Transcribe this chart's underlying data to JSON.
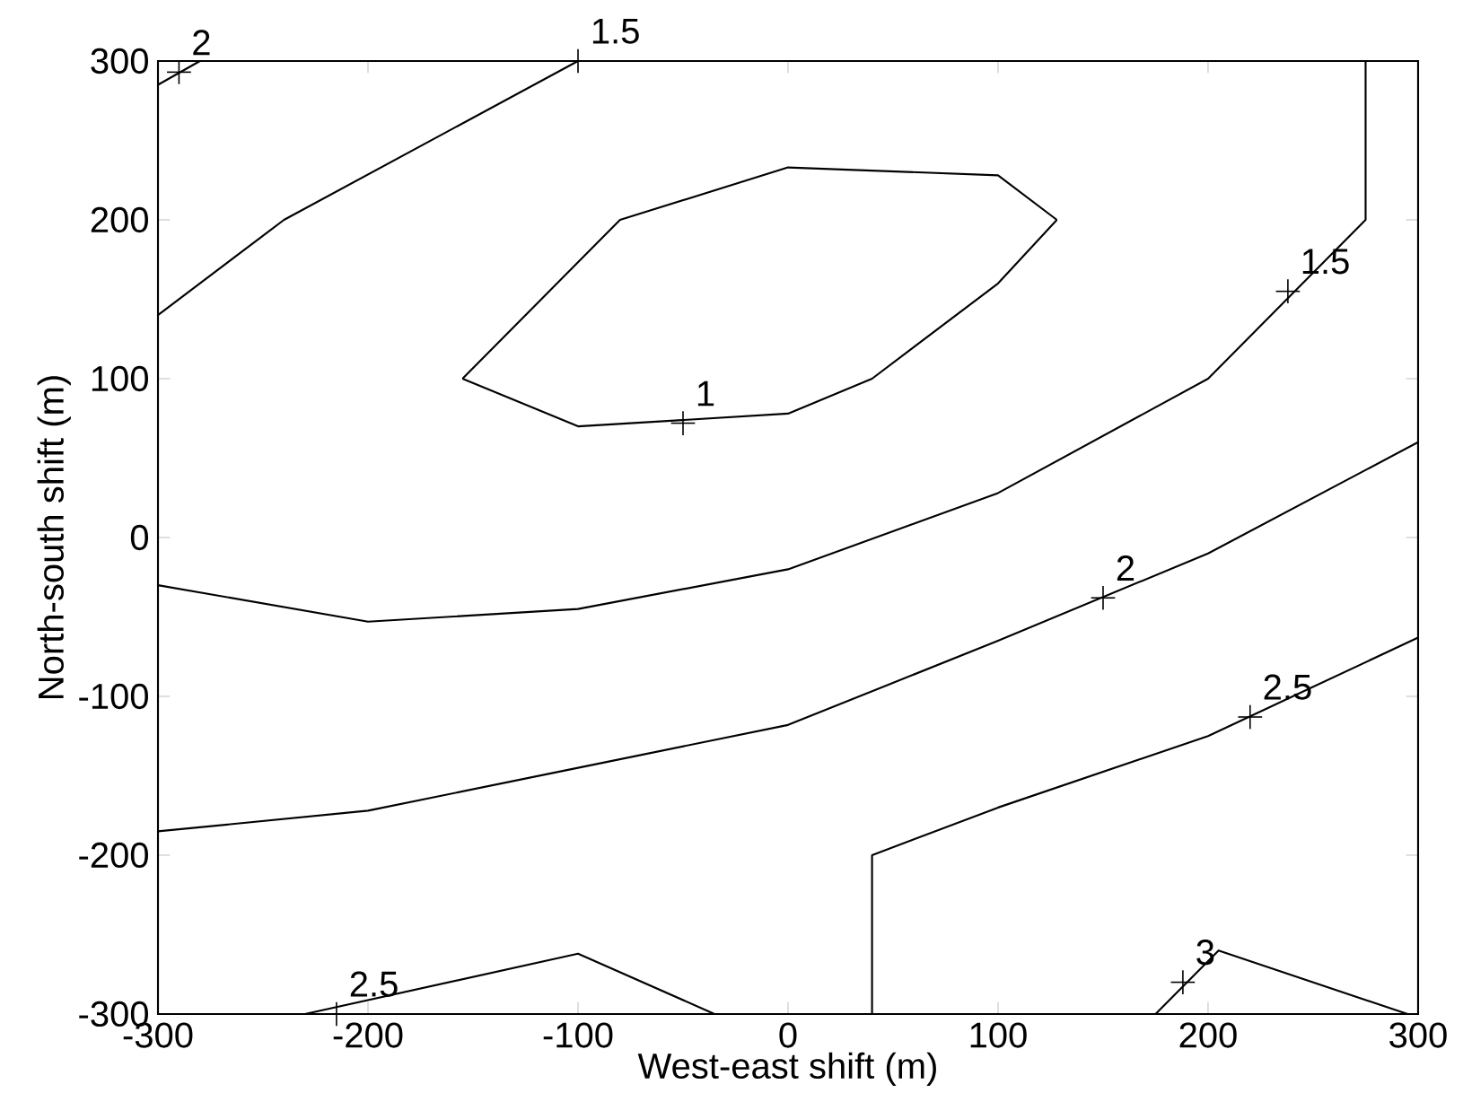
{
  "chart_data": {
    "type": "line",
    "xlabel": "West-east shift (m)",
    "ylabel": "North-south shift (m)",
    "xlim": [
      -300,
      300
    ],
    "ylim": [
      -300,
      300
    ],
    "xticks": [
      -300,
      -200,
      -100,
      0,
      100,
      200,
      300
    ],
    "yticks": [
      -300,
      -200,
      -100,
      0,
      100,
      200,
      300
    ],
    "series": [
      {
        "color": "#000000",
        "x": [
          -300,
          -280
        ],
        "values": [
          285,
          300
        ]
      },
      {
        "color": "#000000",
        "x": [
          -300,
          -240,
          -100
        ],
        "values": [
          140,
          200,
          300
        ]
      },
      {
        "color": "#000000",
        "x": [
          -155,
          -80,
          0,
          100,
          128
        ],
        "values": [
          100,
          200,
          233,
          228,
          200
        ]
      },
      {
        "color": "#000000",
        "x": [
          -155,
          -100,
          0,
          40,
          100,
          128
        ],
        "values": [
          100,
          70,
          78,
          100,
          160,
          200
        ]
      },
      {
        "color": "#000000",
        "x": [
          -300,
          -200,
          -100,
          0,
          100,
          200,
          275,
          275
        ],
        "values": [
          -30,
          -53,
          -45,
          -20,
          28,
          100,
          200,
          300
        ]
      },
      {
        "color": "#000000",
        "x": [
          -300,
          -200,
          -100,
          0,
          100,
          200,
          300
        ],
        "values": [
          -185,
          -172,
          -145,
          -118,
          -65,
          -10,
          60
        ]
      },
      {
        "color": "#000000",
        "x": [
          40,
          40,
          100,
          200,
          300
        ],
        "values": [
          -300,
          -200,
          -170,
          -125,
          -63
        ]
      },
      {
        "color": "#000000",
        "x": [
          -230,
          -100,
          -35
        ],
        "values": [
          -300,
          -262,
          -300
        ]
      },
      {
        "color": "#000000",
        "x": [
          175,
          205,
          295
        ],
        "values": [
          -300,
          -260,
          -300
        ]
      }
    ],
    "annotations": [
      {
        "text": "2",
        "x": -290,
        "y": 293
      },
      {
        "text": "1.5",
        "x": -100,
        "y": 300
      },
      {
        "text": "1.5",
        "x": 238,
        "y": 155
      },
      {
        "text": "1",
        "x": -50,
        "y": 72
      },
      {
        "text": "2",
        "x": 150,
        "y": -38
      },
      {
        "text": "2.5",
        "x": 220,
        "y": -113
      },
      {
        "text": "2.5",
        "x": -215,
        "y": -300
      },
      {
        "text": "3",
        "x": 188,
        "y": -280
      }
    ]
  }
}
